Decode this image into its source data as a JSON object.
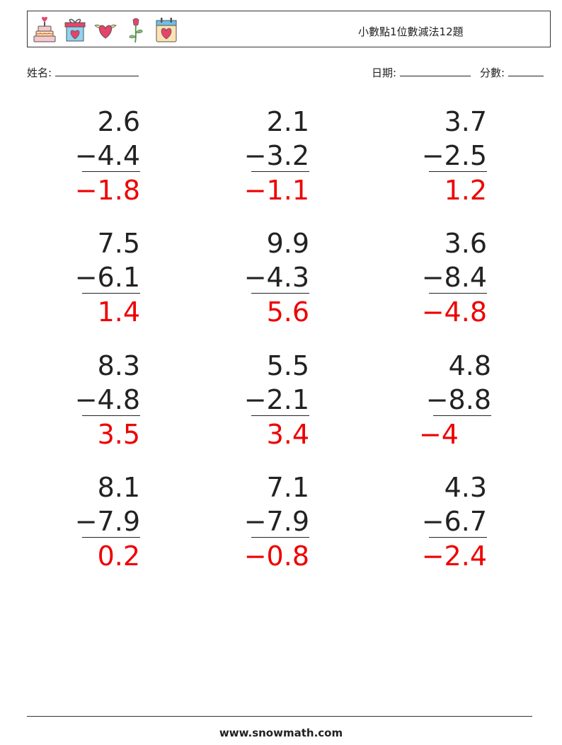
{
  "header": {
    "title": "小數點1位數減法12題",
    "icons": [
      "cake-icon",
      "gift-box-heart-icon",
      "winged-heart-icon",
      "rose-icon",
      "heart-calendar-icon"
    ]
  },
  "fields": {
    "name_label": "姓名:",
    "date_label": "日期:",
    "score_label": "分數:"
  },
  "problems": [
    {
      "top": "2.6",
      "bottom": "−4.4",
      "answer": "−1.8"
    },
    {
      "top": "2.1",
      "bottom": "−3.2",
      "answer": "−1.1"
    },
    {
      "top": "3.7",
      "bottom": "−2.5",
      "answer": "1.2"
    },
    {
      "top": "7.5",
      "bottom": "−6.1",
      "answer": "1.4"
    },
    {
      "top": "9.9",
      "bottom": "−4.3",
      "answer": "5.6"
    },
    {
      "top": "3.6",
      "bottom": "−8.4",
      "answer": "−4.8"
    },
    {
      "top": "8.3",
      "bottom": "−4.8",
      "answer": "3.5"
    },
    {
      "top": "5.5",
      "bottom": "−2.1",
      "answer": "3.4"
    },
    {
      "top": "4.8",
      "bottom": "−8.8",
      "answer": "−4"
    },
    {
      "top": "8.1",
      "bottom": "−7.9",
      "answer": "0.2"
    },
    {
      "top": "7.1",
      "bottom": "−7.9",
      "answer": "−0.8"
    },
    {
      "top": "4.3",
      "bottom": "−6.7",
      "answer": "−2.4"
    }
  ],
  "footer": {
    "site": "www.snowmath.com"
  },
  "colors": {
    "answer": "#ee0000",
    "text": "#222222"
  }
}
